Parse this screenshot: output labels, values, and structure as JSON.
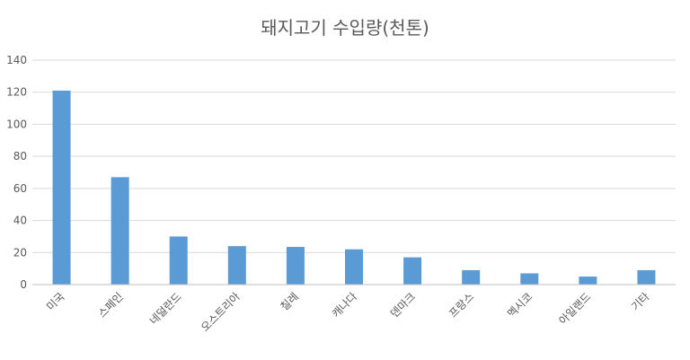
{
  "chart_data": {
    "type": "bar",
    "title": "돼지고기 수입량(천톤)",
    "categories": [
      "미국",
      "스페인",
      "네덜란드",
      "오스트리아",
      "칠레",
      "캐나다",
      "덴마크",
      "프랑스",
      "멕시코",
      "아일랜드",
      "기타"
    ],
    "values": [
      121,
      67,
      30,
      24,
      23.5,
      22,
      17,
      9,
      7,
      5,
      9
    ],
    "ylim": [
      0,
      140
    ],
    "yticks": [
      0,
      20,
      40,
      60,
      80,
      100,
      120,
      140
    ],
    "grid": true,
    "bar_color": "#5b9bd5"
  }
}
